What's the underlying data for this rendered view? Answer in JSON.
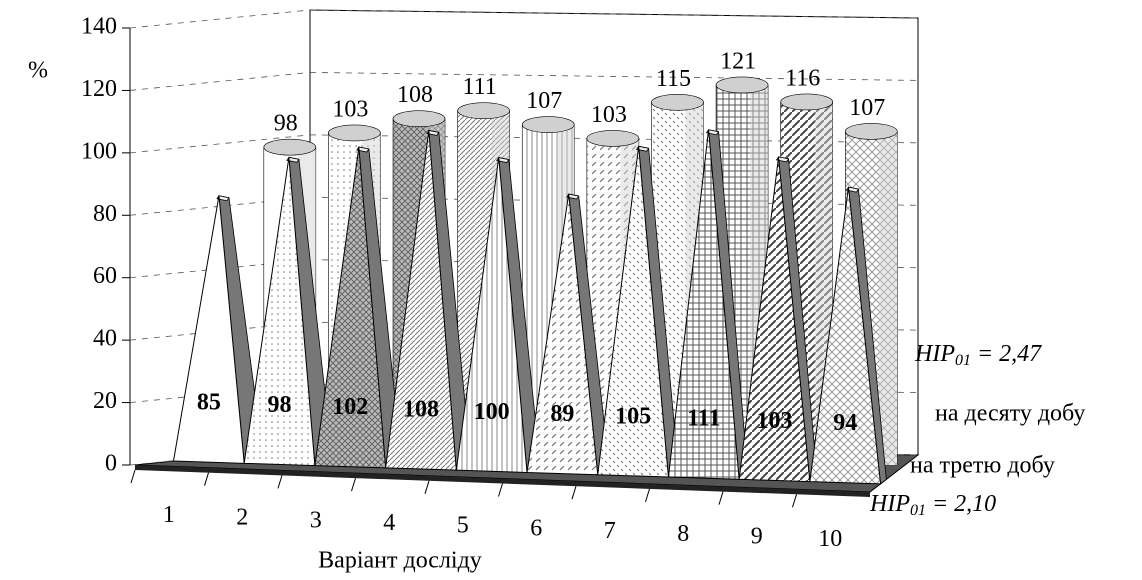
{
  "chart_data": {
    "type": "bar3d",
    "y_label": "%",
    "x_label": "Варіант досліду",
    "categories": [
      "1",
      "2",
      "3",
      "4",
      "5",
      "6",
      "7",
      "8",
      "9",
      "10"
    ],
    "series": [
      {
        "name": "на третю добу",
        "color": "#ffffff",
        "values": [
          85,
          98,
          102,
          108,
          100,
          89,
          105,
          111,
          103,
          94
        ]
      },
      {
        "name": "на десяту добу",
        "color": "#d0d0d0",
        "values": [
          98,
          103,
          108,
          111,
          107,
          103,
          115,
          121,
          116,
          107
        ]
      }
    ],
    "ylim": [
      0,
      140
    ],
    "yticks": [
      0,
      20,
      40,
      60,
      80,
      100,
      120,
      140
    ],
    "grid": true,
    "annotations": [
      {
        "text": "HIP",
        "subscript": "01",
        "suffix": " = 2,47"
      },
      {
        "text": "HIP",
        "subscript": "01",
        "suffix": " = 2,10"
      }
    ]
  }
}
